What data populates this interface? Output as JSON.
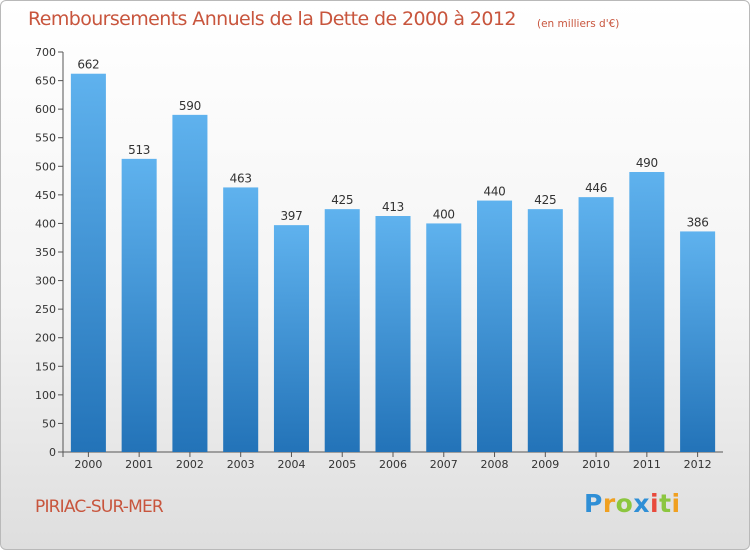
{
  "chart_data": {
    "type": "bar",
    "title": "Remboursements Annuels de la Dette de 2000 à 2012",
    "unit_note": "(en milliers d'€)",
    "categories": [
      "2000",
      "2001",
      "2002",
      "2003",
      "2004",
      "2005",
      "2006",
      "2007",
      "2008",
      "2009",
      "2010",
      "2011",
      "2012"
    ],
    "values": [
      662,
      513,
      590,
      463,
      397,
      425,
      413,
      400,
      440,
      425,
      446,
      490,
      386
    ],
    "ylim": [
      0,
      700
    ],
    "yticks": [
      0,
      50,
      100,
      150,
      200,
      250,
      300,
      350,
      400,
      450,
      500,
      550,
      600,
      650,
      700
    ],
    "grid": false,
    "bar_color": "#2f8fd6"
  },
  "footer": {
    "place": "PIRIAC-SUR-MER",
    "logo_letters": [
      "P",
      "r",
      "o",
      "x",
      "i",
      "t",
      "i"
    ]
  }
}
